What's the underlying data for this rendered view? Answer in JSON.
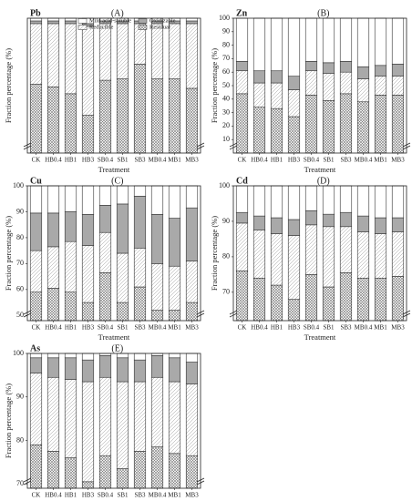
{
  "chart_data": [
    {
      "type": "bar",
      "stacked": true,
      "title": "Pb",
      "panel_label": "(A)",
      "x_label": "Treatment",
      "y_label": "Fraction percentage (%)",
      "categories": [
        "CK",
        "HB0.4",
        "HB1",
        "HB3",
        "SB0.4",
        "SB1",
        "SB3",
        "MB0.4",
        "MB1",
        "MB3"
      ],
      "ylim": [
        50,
        100
      ],
      "axis_break": true,
      "legend": "top",
      "series": [
        {
          "name": "Residual",
          "color": "residual",
          "values": [
            75.5,
            74.5,
            72,
            64,
            77,
            77.5,
            83,
            77.5,
            77.5,
            74
          ]
        },
        {
          "name": "Reducible",
          "color": "reducible",
          "values": [
            22.5,
            23.5,
            26,
            33,
            21,
            20.5,
            15,
            20.5,
            20.5,
            24
          ]
        },
        {
          "name": "Oxidizable",
          "color": "#a9a9a9",
          "values": [
            1,
            1,
            1,
            1,
            1,
            1,
            1,
            1,
            1,
            1
          ]
        },
        {
          "name": "Mild acid-soluble",
          "color": "#ffffff",
          "values": [
            1,
            1,
            1,
            2,
            1,
            1,
            1,
            1,
            1,
            1
          ]
        }
      ]
    },
    {
      "type": "bar",
      "stacked": true,
      "title": "Zn",
      "panel_label": "(B)",
      "x_label": "Treatment",
      "y_label": "Fraction percentage (%)",
      "categories": [
        "CK",
        "HB0.4",
        "HB1",
        "HB3",
        "SB0.4",
        "SB1",
        "SB3",
        "MB0.4",
        "MB1",
        "MB3"
      ],
      "ylim": [
        0,
        100
      ],
      "yticks": [
        10,
        20,
        30,
        40,
        50,
        60,
        70,
        80,
        90,
        100
      ],
      "axis_break": true,
      "series": [
        {
          "color": "residual",
          "values": [
            44,
            34,
            33,
            27,
            43,
            39,
            44,
            38,
            43,
            43
          ]
        },
        {
          "color": "reducible",
          "values": [
            17,
            18,
            19,
            20,
            18,
            20,
            16,
            17,
            14,
            14
          ]
        },
        {
          "color": "#a9a9a9",
          "values": [
            7,
            9,
            9,
            10,
            7,
            8,
            8,
            9,
            8,
            9
          ]
        },
        {
          "color": "#ffffff",
          "values": [
            32,
            39,
            39,
            43,
            32,
            33,
            32,
            36,
            35,
            34
          ]
        }
      ]
    },
    {
      "type": "bar",
      "stacked": true,
      "title": "Cu",
      "panel_label": "(C)",
      "x_label": "Treatment",
      "y_label": "Fraction percentage (%)",
      "categories": [
        "CK",
        "HB0.4",
        "HB1",
        "HB3",
        "SB0.4",
        "SB1",
        "SB3",
        "MB0.4",
        "MB1",
        "MB3"
      ],
      "ylim": [
        48,
        100
      ],
      "yticks": [
        50,
        60,
        70,
        80,
        90,
        100
      ],
      "axis_break": true,
      "series": [
        {
          "color": "residual",
          "values": [
            59,
            60.5,
            59,
            55,
            66.5,
            55,
            61,
            52,
            52,
            55
          ]
        },
        {
          "color": "reducible",
          "values": [
            16,
            16,
            19.5,
            22,
            15.5,
            19,
            15,
            18,
            17,
            16
          ]
        },
        {
          "color": "#a9a9a9",
          "values": [
            14.5,
            13,
            11.5,
            12,
            10.5,
            19,
            20,
            19,
            18.5,
            20.5
          ]
        },
        {
          "color": "#ffffff",
          "values": [
            10.5,
            10.5,
            10,
            11,
            7.5,
            7,
            4,
            11,
            12.5,
            8.5
          ]
        }
      ]
    },
    {
      "type": "bar",
      "stacked": true,
      "title": "Cd",
      "panel_label": "(D)",
      "x_label": "Treatment",
      "y_label": "Fraction percentage (%)",
      "categories": [
        "CK",
        "HB0.4",
        "HB1",
        "HB3",
        "SB0.4",
        "SB1",
        "SB3",
        "MB0.4",
        "MB1",
        "MB3"
      ],
      "ylim": [
        62,
        100
      ],
      "yticks": [
        70,
        80,
        90,
        100
      ],
      "axis_break": true,
      "series": [
        {
          "color": "residual",
          "values": [
            76,
            74,
            72,
            68,
            75,
            71.5,
            75.5,
            74,
            74,
            74.5
          ]
        },
        {
          "color": "reducible",
          "values": [
            13.5,
            13.5,
            14.5,
            18,
            14,
            17,
            13,
            13,
            12.5,
            12.5
          ]
        },
        {
          "color": "#a9a9a9",
          "values": [
            3,
            4,
            4.5,
            4.5,
            4,
            3.5,
            4,
            4.5,
            4.5,
            4
          ]
        },
        {
          "color": "#ffffff",
          "values": [
            7.5,
            8.5,
            9,
            9.5,
            7,
            8,
            7.5,
            8.5,
            9,
            9
          ]
        }
      ]
    },
    {
      "type": "bar",
      "stacked": true,
      "title": "As",
      "panel_label": "(E)",
      "x_label": "Treatment",
      "y_label": "Fraction percentage (%)",
      "categories": [
        "CK",
        "HB0.4",
        "HB1",
        "HB3",
        "SB0.4",
        "SB1",
        "SB3",
        "MB0.4",
        "MB1",
        "MB3"
      ],
      "ylim": [
        69,
        100
      ],
      "yticks": [
        70,
        80,
        90,
        100
      ],
      "axis_break": true,
      "series": [
        {
          "color": "residual",
          "values": [
            79,
            77.5,
            76,
            70.5,
            76.5,
            73.5,
            77.5,
            78.5,
            77,
            76.5
          ]
        },
        {
          "color": "reducible",
          "values": [
            16.5,
            17,
            18,
            23,
            18,
            20,
            16,
            16,
            16.5,
            16.5
          ]
        },
        {
          "color": "#a9a9a9",
          "values": [
            3.5,
            4.5,
            5,
            5,
            5,
            5.5,
            5,
            5,
            5.5,
            5
          ]
        },
        {
          "color": "#ffffff",
          "values": [
            1,
            1,
            1,
            1.5,
            0.5,
            1,
            1.5,
            0.5,
            1,
            2
          ]
        }
      ]
    }
  ]
}
